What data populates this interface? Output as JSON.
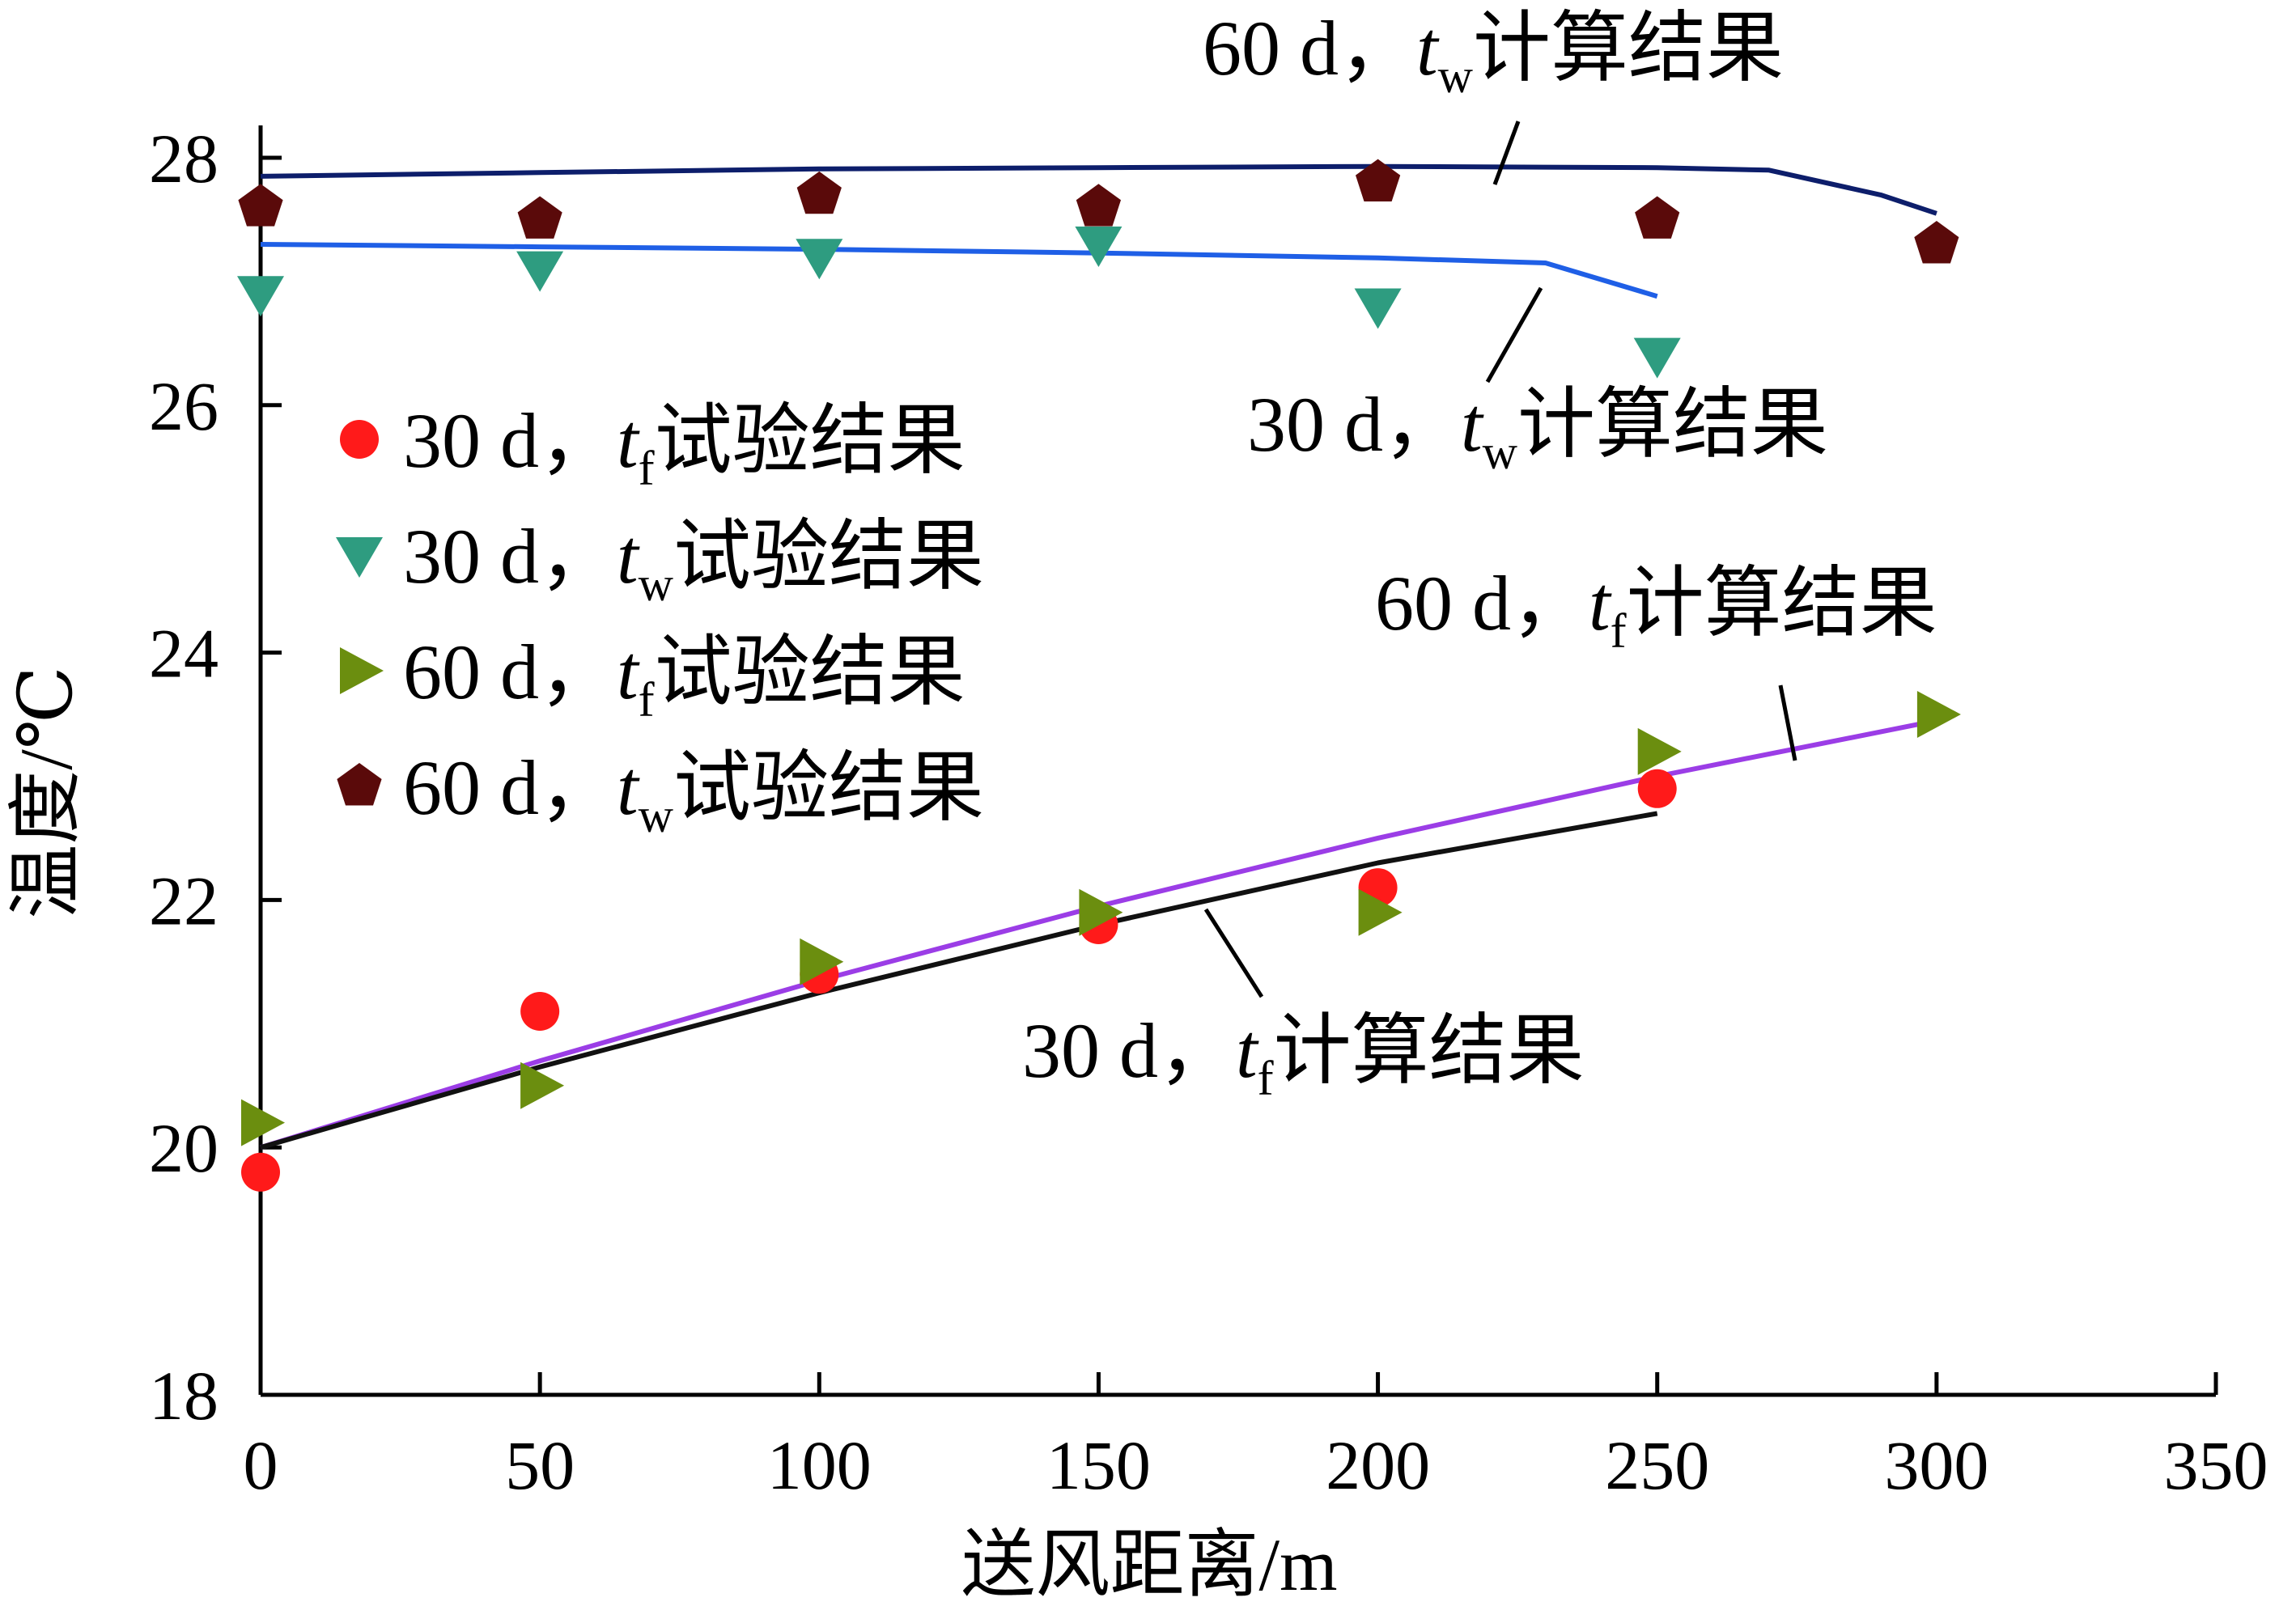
{
  "chart_data": {
    "type": "line",
    "xlabel": "送风距离/m",
    "ylabel": "温度/℃",
    "xlim": [
      0,
      350
    ],
    "ylim": [
      18,
      28
    ],
    "xticks": [
      "0",
      "50",
      "100",
      "150",
      "200",
      "250",
      "300",
      "350"
    ],
    "yticks": [
      "18",
      "20",
      "22",
      "24",
      "26",
      "28"
    ],
    "grid": false,
    "legend_position": "center-left",
    "series": [
      {
        "name": "30 d，tf试验结果",
        "prefix": "30 d，",
        "var": "t",
        "sub": "f",
        "suffix": "试验结果",
        "kind": "scatter",
        "marker": "circle",
        "color": "#ff1a1a",
        "x": [
          0,
          50,
          100,
          150,
          200,
          250
        ],
        "y": [
          19.8,
          21.1,
          21.4,
          21.8,
          22.1,
          22.9
        ]
      },
      {
        "name": "30 d，tw试验结果",
        "prefix": "30 d，",
        "var": "t",
        "sub": "w",
        "suffix": "试验结果",
        "kind": "scatter",
        "marker": "triangle-down",
        "color": "#2e9c80",
        "x": [
          0,
          50,
          100,
          150,
          200,
          250
        ],
        "y": [
          26.9,
          27.1,
          27.2,
          27.3,
          26.8,
          26.4
        ]
      },
      {
        "name": "60 d，tf试验结果",
        "prefix": "60 d，",
        "var": "t",
        "sub": "f",
        "suffix": "试验结果",
        "kind": "scatter",
        "marker": "triangle-right",
        "color": "#6b8e0f",
        "x": [
          0,
          50,
          100,
          150,
          200,
          250,
          300
        ],
        "y": [
          20.2,
          20.5,
          21.5,
          21.9,
          21.9,
          23.2,
          23.5
        ]
      },
      {
        "name": "60 d，tw试验结果",
        "prefix": "60 d，",
        "var": "t",
        "sub": "w",
        "suffix": "试验结果",
        "kind": "scatter",
        "marker": "pentagon",
        "color": "#5a0a0a",
        "x": [
          0,
          50,
          100,
          150,
          200,
          250,
          300
        ],
        "y": [
          27.6,
          27.5,
          27.7,
          27.6,
          27.8,
          27.5,
          27.3
        ]
      },
      {
        "name": "60 d，tw计算结果",
        "prefix": "60 d，",
        "var": "t",
        "sub": "w",
        "suffix": "计算结果",
        "kind": "line",
        "color": "#0d1e6b",
        "x": [
          0,
          50,
          100,
          150,
          200,
          250,
          270,
          290,
          300
        ],
        "y": [
          27.85,
          27.88,
          27.91,
          27.92,
          27.93,
          27.92,
          27.9,
          27.7,
          27.55
        ]
      },
      {
        "name": "30 d，tw计算结果",
        "prefix": "30 d，",
        "var": "t",
        "sub": "w",
        "suffix": "计算结果",
        "kind": "line",
        "color": "#1f5fe6",
        "x": [
          0,
          50,
          100,
          150,
          200,
          230,
          250
        ],
        "y": [
          27.3,
          27.28,
          27.26,
          27.23,
          27.19,
          27.15,
          26.88
        ]
      },
      {
        "name": "60 d，tf计算结果",
        "prefix": "60 d，",
        "var": "t",
        "sub": "f",
        "suffix": "计算结果",
        "kind": "line",
        "color": "#9b3de6",
        "x": [
          0,
          50,
          100,
          150,
          200,
          250,
          300
        ],
        "y": [
          20.0,
          20.7,
          21.35,
          21.95,
          22.5,
          23.0,
          23.45
        ]
      },
      {
        "name": "30 d，tf计算结果",
        "prefix": "30 d，",
        "var": "t",
        "sub": "f",
        "suffix": "计算结果",
        "kind": "line",
        "color": "#111111",
        "x": [
          0,
          50,
          100,
          150,
          200,
          250
        ],
        "y": [
          20.0,
          20.65,
          21.25,
          21.8,
          22.3,
          22.7
        ]
      }
    ]
  }
}
